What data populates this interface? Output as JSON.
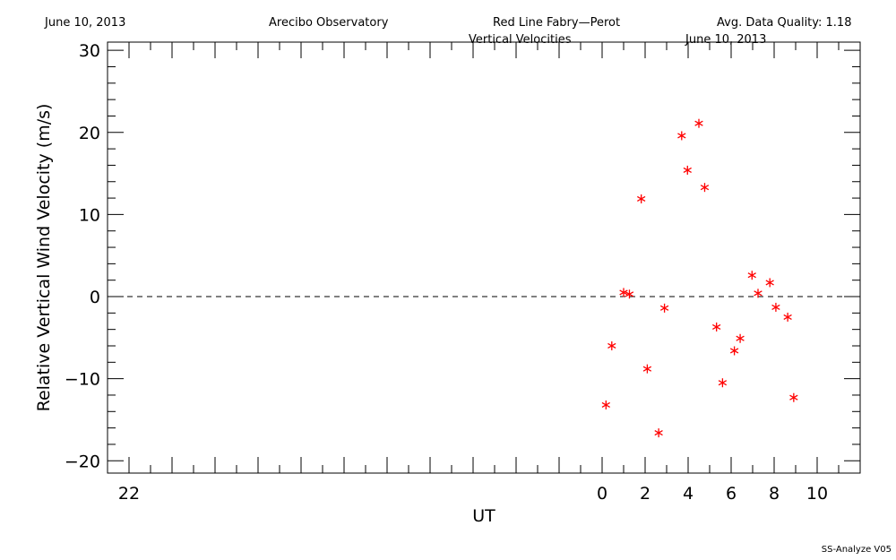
{
  "header": {
    "date": "June 10, 2013",
    "observatory": "Arecibo Observatory",
    "instrument": "Red Line Fabry—Perot",
    "quality": "Avg. Data Quality: 1.18"
  },
  "footer": "SS-Analyze V05",
  "chart_data": {
    "type": "scatter",
    "title": "Vertical Velocities",
    "subtitle": "June 10, 2013",
    "xlabel": "UT",
    "ylabel": "Relative Vertical Wind Velocity (m/s)",
    "xlim": [
      -23,
      12
    ],
    "ylim": [
      -21.5,
      31
    ],
    "x_ticks": [
      -22,
      0,
      2,
      4,
      6,
      8,
      10
    ],
    "x_tick_labels": [
      "22",
      "0",
      "2",
      "4",
      "6",
      "8",
      "10"
    ],
    "y_ticks": [
      -20,
      -10,
      0,
      10,
      20,
      30
    ],
    "y_tick_labels": [
      "−20",
      "−10",
      "0",
      "10",
      "20",
      "30"
    ],
    "reference_line": 0,
    "marker": "asterisk",
    "color": "#ff0000",
    "series": [
      {
        "x": [
          0.18,
          0.45,
          1.0,
          1.27,
          1.82,
          2.1,
          2.63,
          2.9,
          3.7,
          3.97,
          4.5,
          4.77,
          5.32,
          5.6,
          6.15,
          6.42,
          6.97,
          7.25,
          7.8,
          8.08,
          8.63,
          8.91
        ],
        "y": [
          -13.2,
          -6.0,
          0.5,
          0.3,
          11.9,
          -8.8,
          -16.6,
          -1.4,
          19.6,
          15.4,
          21.1,
          13.3,
          -3.7,
          -10.5,
          -6.6,
          -5.1,
          2.6,
          0.4,
          1.7,
          -1.3,
          -2.5,
          -12.3
        ]
      }
    ]
  }
}
